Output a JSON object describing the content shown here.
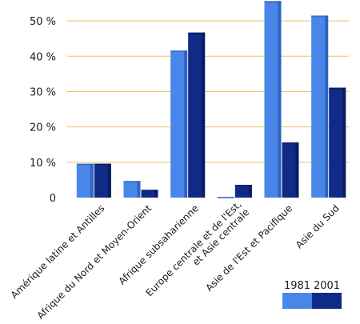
{
  "chart_data": {
    "type": "bar",
    "categories": [
      "Amérique latine et Antilles",
      "Afrique du Nord et Moyen-Orient",
      "Afrique subsaharienne",
      "Europe centrale et de l'Est, et Asie centrale",
      "Asie de l'Est et Pacifique",
      "Asie du Sud"
    ],
    "category_lines": [
      [
        "Amérique latine et Antilles"
      ],
      [
        "Afrique du Nord et Moyen-Orient"
      ],
      [
        "Afrique subsaharienne"
      ],
      [
        "Europe centrale et de l'Est,",
        "et Asie centrale"
      ],
      [
        "Asie de l'Est et Pacifique"
      ],
      [
        "Asie du Sud"
      ]
    ],
    "series": [
      {
        "name": "1981",
        "values": [
          9.6,
          4.7,
          41.6,
          0.2,
          55.6,
          51.5
        ],
        "color": "#4a86e8",
        "dark": "#2f63c4"
      },
      {
        "name": "2001",
        "values": [
          9.6,
          2.2,
          46.7,
          3.6,
          15.6,
          31.1
        ],
        "color": "#102a88",
        "dark": "#0a1c63"
      }
    ],
    "ylim": [
      0,
      55
    ],
    "yticks": [
      0,
      10,
      20,
      30,
      40,
      50
    ],
    "ytick_labels": [
      "0",
      "10 %",
      "20 %",
      "30 %",
      "40 %",
      "50 %"
    ],
    "grid": true,
    "grid_color": "#f0c060",
    "legend_position": "bottom-right"
  }
}
